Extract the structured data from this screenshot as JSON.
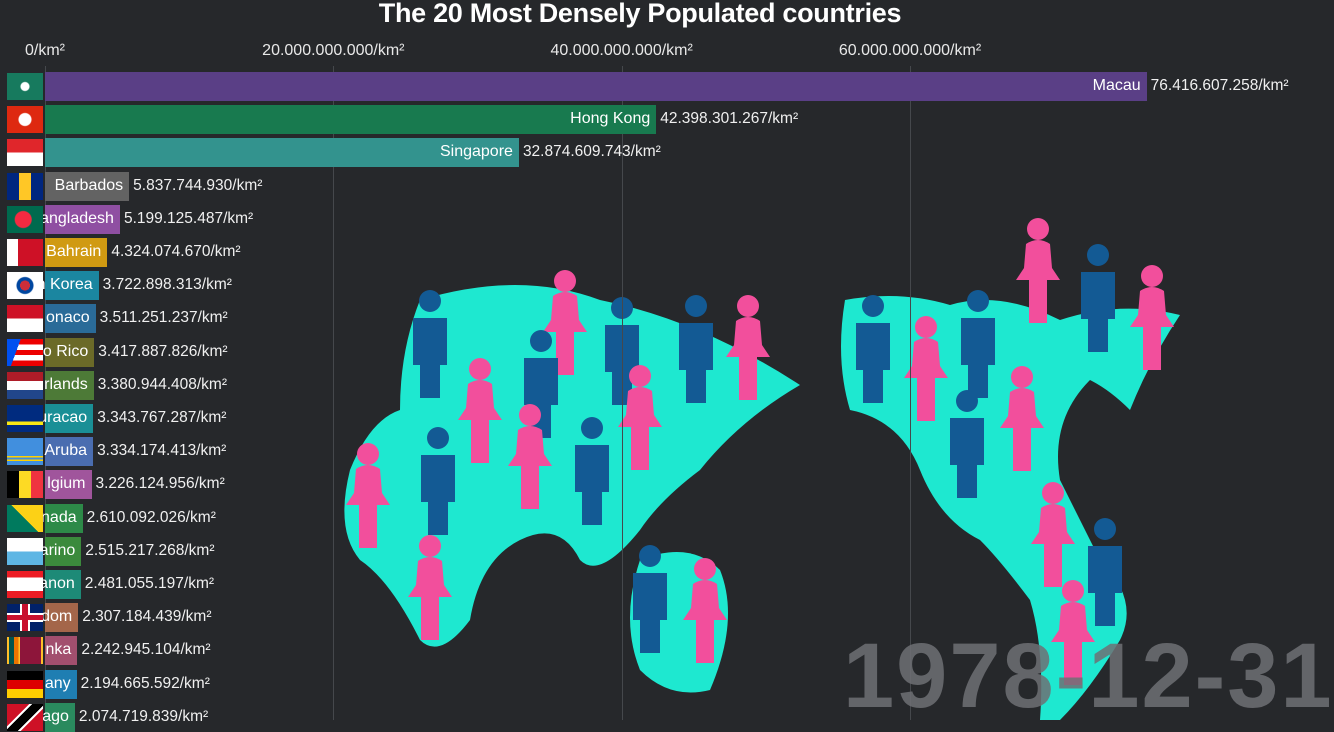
{
  "chart_data": {
    "type": "bar",
    "orientation": "horizontal",
    "title": "The 20 Most Densely Populated countries",
    "xlim": [
      0,
      80000000000
    ],
    "x_ticks": [
      "0/km²",
      "20.000.000.000/km²",
      "40.000.000.000/km²",
      "60.000.000.000/km²"
    ],
    "x_tick_values": [
      0,
      20000000000,
      40000000000,
      60000000000
    ],
    "grid": true,
    "date": "1978-12-31",
    "bars": [
      {
        "label": "Macau",
        "value": 76416607258,
        "value_label": "76.416.607.258/km²",
        "color": "#5a3f86",
        "flag": "macau-flag-icon"
      },
      {
        "label": "Hong Kong",
        "value": 42398301267,
        "value_label": "42.398.301.267/km²",
        "color": "#187a4f",
        "flag": "hong-kong-flag-icon"
      },
      {
        "label": "Singapore",
        "value": 32874609743,
        "value_label": "32.874.609.743/km²",
        "color": "#33938e",
        "flag": "singapore-flag-icon"
      },
      {
        "label": "Barbados",
        "value": 5837744930,
        "value_label": "5.837.744.930/km²",
        "color": "#636363",
        "flag": "barbados-flag-icon"
      },
      {
        "label": "angladesh",
        "value": 5199125487,
        "value_label": "5.199.125.487/km²",
        "color": "#8f4fa2",
        "flag": "bangladesh-flag-icon"
      },
      {
        "label": "Bahrain",
        "value": 4324074670,
        "value_label": "4.324.074.670/km²",
        "color": "#d09a12",
        "flag": "bahrain-flag-icon"
      },
      {
        "label": "n Korea",
        "value": 3722898313,
        "value_label": "3.722.898.313/km²",
        "color": "#1b86a0",
        "flag": "south-korea-flag-icon"
      },
      {
        "label": "onaco",
        "value": 3511251237,
        "value_label": "3.511.251.237/km²",
        "color": "#2a6b98",
        "flag": "monaco-flag-icon"
      },
      {
        "label": "o Rico",
        "value": 3417887826,
        "value_label": "3.417.887.826/km²",
        "color": "#6b6a28",
        "flag": "puerto-rico-flag-icon"
      },
      {
        "label": "rlands",
        "value": 3380944408,
        "value_label": "3.380.944.408/km²",
        "color": "#4d7a37",
        "flag": "netherlands-flag-icon"
      },
      {
        "label": "uracao",
        "value": 3343767287,
        "value_label": "3.343.767.287/km²",
        "color": "#1a8f96",
        "flag": "curacao-flag-icon"
      },
      {
        "label": "Aruba",
        "value": 3334174413,
        "value_label": "3.334.174.413/km²",
        "color": "#4a6db0",
        "flag": "aruba-flag-icon"
      },
      {
        "label": "lgium",
        "value": 3226124956,
        "value_label": "3.226.124.956/km²",
        "color": "#a0559c",
        "flag": "belgium-flag-icon"
      },
      {
        "label": "nada",
        "value": 2610092026,
        "value_label": "2.610.092.026/km²",
        "color": "#2d8a48",
        "flag": "grenada-flag-icon"
      },
      {
        "label": "arino",
        "value": 2515217268,
        "value_label": "2.515.217.268/km²",
        "color": "#3b8a3c",
        "flag": "san-marino-flag-icon"
      },
      {
        "label": "anon",
        "value": 2481055197,
        "value_label": "2.481.055.197/km²",
        "color": "#1d8a77",
        "flag": "lebanon-flag-icon"
      },
      {
        "label": "dom",
        "value": 2307184439,
        "value_label": "2.307.184.439/km²",
        "color": "#a4664a",
        "flag": "united-kingdom-flag-icon"
      },
      {
        "label": "nka",
        "value": 2242945104,
        "value_label": "2.242.945.104/km²",
        "color": "#a24f6e",
        "flag": "sri-lanka-flag-icon"
      },
      {
        "label": "any",
        "value": 2194665592,
        "value_label": "2.194.665.592/km²",
        "color": "#1f7eb2",
        "flag": "germany-flag-icon"
      },
      {
        "label": "ago",
        "value": 2074719839,
        "value_label": "2.074.719.839/km²",
        "color": "#2a8a5e",
        "flag": "trinidad-and-tobago-flag-icon"
      }
    ]
  },
  "background": {
    "map_color": "#1ee8d0",
    "female_figure_color": "#f24f9c",
    "male_figure_color": "#135a94",
    "background_color": "#26282b"
  }
}
